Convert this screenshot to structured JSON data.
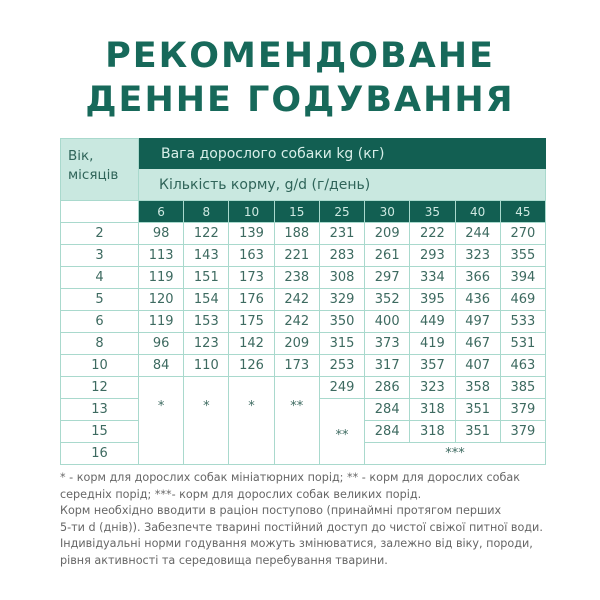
{
  "title": {
    "line1": "РЕКОМЕНДОВАНЕ",
    "line2": "ДЕННЕ ГОДУВАННЯ"
  },
  "table": {
    "age_header": "Вік, місяців",
    "weight_header": "Вага дорослого собаки kg (кг)",
    "amount_header": "Кількість корму, g/d (г/день)",
    "weights": [
      "6",
      "8",
      "10",
      "15",
      "25",
      "30",
      "35",
      "40",
      "45"
    ],
    "rows": [
      {
        "age": "2",
        "values": [
          "98",
          "122",
          "139",
          "188",
          "231",
          "209",
          "222",
          "244",
          "270"
        ]
      },
      {
        "age": "3",
        "values": [
          "113",
          "143",
          "163",
          "221",
          "283",
          "261",
          "293",
          "323",
          "355"
        ]
      },
      {
        "age": "4",
        "values": [
          "119",
          "151",
          "173",
          "238",
          "308",
          "297",
          "334",
          "366",
          "394"
        ]
      },
      {
        "age": "5",
        "values": [
          "120",
          "154",
          "176",
          "242",
          "329",
          "352",
          "395",
          "436",
          "469"
        ]
      },
      {
        "age": "6",
        "values": [
          "119",
          "153",
          "175",
          "242",
          "350",
          "400",
          "449",
          "497",
          "533"
        ]
      },
      {
        "age": "8",
        "values": [
          "96",
          "123",
          "142",
          "209",
          "315",
          "373",
          "419",
          "467",
          "531"
        ]
      },
      {
        "age": "10",
        "values": [
          "84",
          "110",
          "126",
          "173",
          "253",
          "317",
          "357",
          "407",
          "463"
        ]
      }
    ],
    "late_rows": {
      "ages": [
        "12",
        "13",
        "15",
        "16"
      ],
      "mini_marks": [
        "*",
        "*",
        "*",
        "**"
      ],
      "r12_25": "249",
      "medium_mark": "**",
      "r12": [
        "286",
        "323",
        "358",
        "385"
      ],
      "r13": [
        "284",
        "318",
        "351",
        "379"
      ],
      "r15": [
        "284",
        "318",
        "351",
        "379"
      ],
      "large_mark": "***"
    }
  },
  "notes": [
    "* - корм для дорослих собак мініатюрних порід; ** - корм для дорослих собак",
    "середніх порід; ***- корм для дорослих собак великих порід.",
    "Корм необхідно вводити в раціон поступово (принаймні протягом перших",
    "5-ти d (днів)). Забезпечте тварині постійний доступ до чистої свіжої питної води.",
    "Індивідуальні норми годування можуть змінюватися, залежно від віку, породи,",
    "рівня активності та середовища перебування тварини."
  ],
  "colors": {
    "dark_green": "#125f52",
    "mint": "#c9e8e0",
    "grid": "#a9d9cd"
  }
}
